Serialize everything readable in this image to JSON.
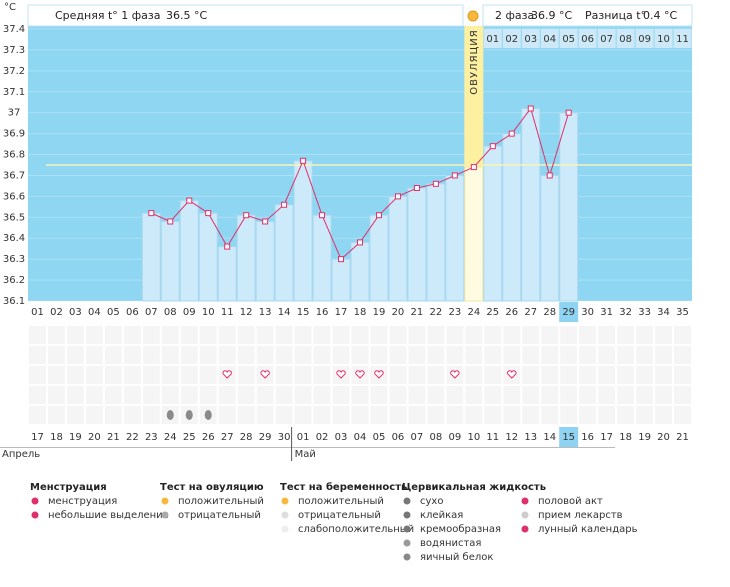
{
  "chart_data": {
    "type": "bar",
    "unit": "°C",
    "header": {
      "phase1_label": "Средняя t° 1 фаза",
      "phase1_value": "36.5 °C",
      "phase2_label": "2 фаза",
      "phase2_value": "36.9 °C",
      "diff_label": "Разница t°",
      "diff_value": "0.4 °C"
    },
    "categories": [
      "01",
      "02",
      "03",
      "04",
      "05",
      "06",
      "07",
      "08",
      "09",
      "10",
      "11",
      "12",
      "13",
      "14",
      "15",
      "16",
      "17",
      "18",
      "19",
      "20",
      "21",
      "22",
      "23",
      "24",
      "25",
      "26",
      "27",
      "28",
      "29",
      "30",
      "31",
      "32",
      "33",
      "34",
      "35"
    ],
    "values": [
      null,
      null,
      null,
      null,
      null,
      null,
      36.52,
      36.48,
      36.58,
      36.52,
      36.36,
      36.51,
      36.48,
      36.56,
      36.77,
      36.51,
      36.3,
      36.38,
      36.51,
      36.6,
      36.64,
      36.66,
      36.7,
      36.74,
      36.84,
      36.9,
      37.02,
      36.7,
      37.0,
      null,
      null,
      null,
      null,
      null,
      null
    ],
    "line_color": "#e0306a",
    "bar_color": "#cdeafb",
    "background": "#8fd6f2",
    "coverline": 36.75,
    "ylim": [
      36.1,
      37.4
    ],
    "yticks": [
      36.1,
      36.2,
      36.3,
      36.4,
      36.5,
      36.6,
      36.7,
      36.8,
      36.9,
      37,
      37.1,
      37.2,
      37.3,
      37.4
    ],
    "grid": true,
    "ovulation": {
      "label": "ОВУЛЯЦИЯ",
      "day": "24"
    },
    "dpo_labels": [
      "01",
      "02",
      "03",
      "04",
      "05",
      "06",
      "07",
      "08",
      "09",
      "10",
      "11"
    ],
    "today": {
      "day": "29",
      "date": "15"
    },
    "intercourse_days": [
      11,
      13,
      17,
      18,
      19,
      23,
      26
    ],
    "egg_white_days": [
      8,
      9,
      10
    ],
    "dates": [
      "17",
      "18",
      "19",
      "20",
      "21",
      "22",
      "23",
      "24",
      "25",
      "26",
      "27",
      "28",
      "29",
      "30",
      "01",
      "02",
      "03",
      "04",
      "05",
      "06",
      "07",
      "08",
      "09",
      "10",
      "11",
      "12",
      "13",
      "14",
      "15",
      "16",
      "17",
      "18",
      "19",
      "20",
      "21"
    ],
    "date_colors": [
      "#333",
      "#333",
      "#d0021b",
      "#d0021b",
      "#333",
      "#333",
      "#333",
      "#333",
      "#333",
      "#d0021b",
      "#d0021b",
      "#333",
      "#333",
      "#333",
      "#333",
      "#333",
      "#d0021b",
      "#d0021b",
      "#333",
      "#333",
      "#333",
      "#333",
      "#333",
      "#d0021b",
      "#d0021b",
      "#333",
      "#333",
      "#333",
      "#333",
      "#333",
      "#d0021b",
      "#d0021b",
      "#333",
      "#333",
      "#333"
    ],
    "months": [
      "Апрель",
      "Май"
    ],
    "legend": [
      {
        "title": "Менструация",
        "items": [
          "менструация",
          "небольшие выделения"
        ]
      },
      {
        "title": "Тест на овуляцию",
        "items": [
          "положительный",
          "отрицательный"
        ]
      },
      {
        "title": "Тест на беременность",
        "items": [
          "положительный",
          "отрицательный",
          "слабоположительный"
        ]
      },
      {
        "title": "Цервикальная жидкость",
        "items": [
          "сухо",
          "клейкая",
          "кремообразная",
          "водянистая",
          "яичный белок"
        ]
      },
      {
        "items": [
          "половой акт",
          "прием лекарств",
          "лунный календарь"
        ]
      }
    ]
  }
}
